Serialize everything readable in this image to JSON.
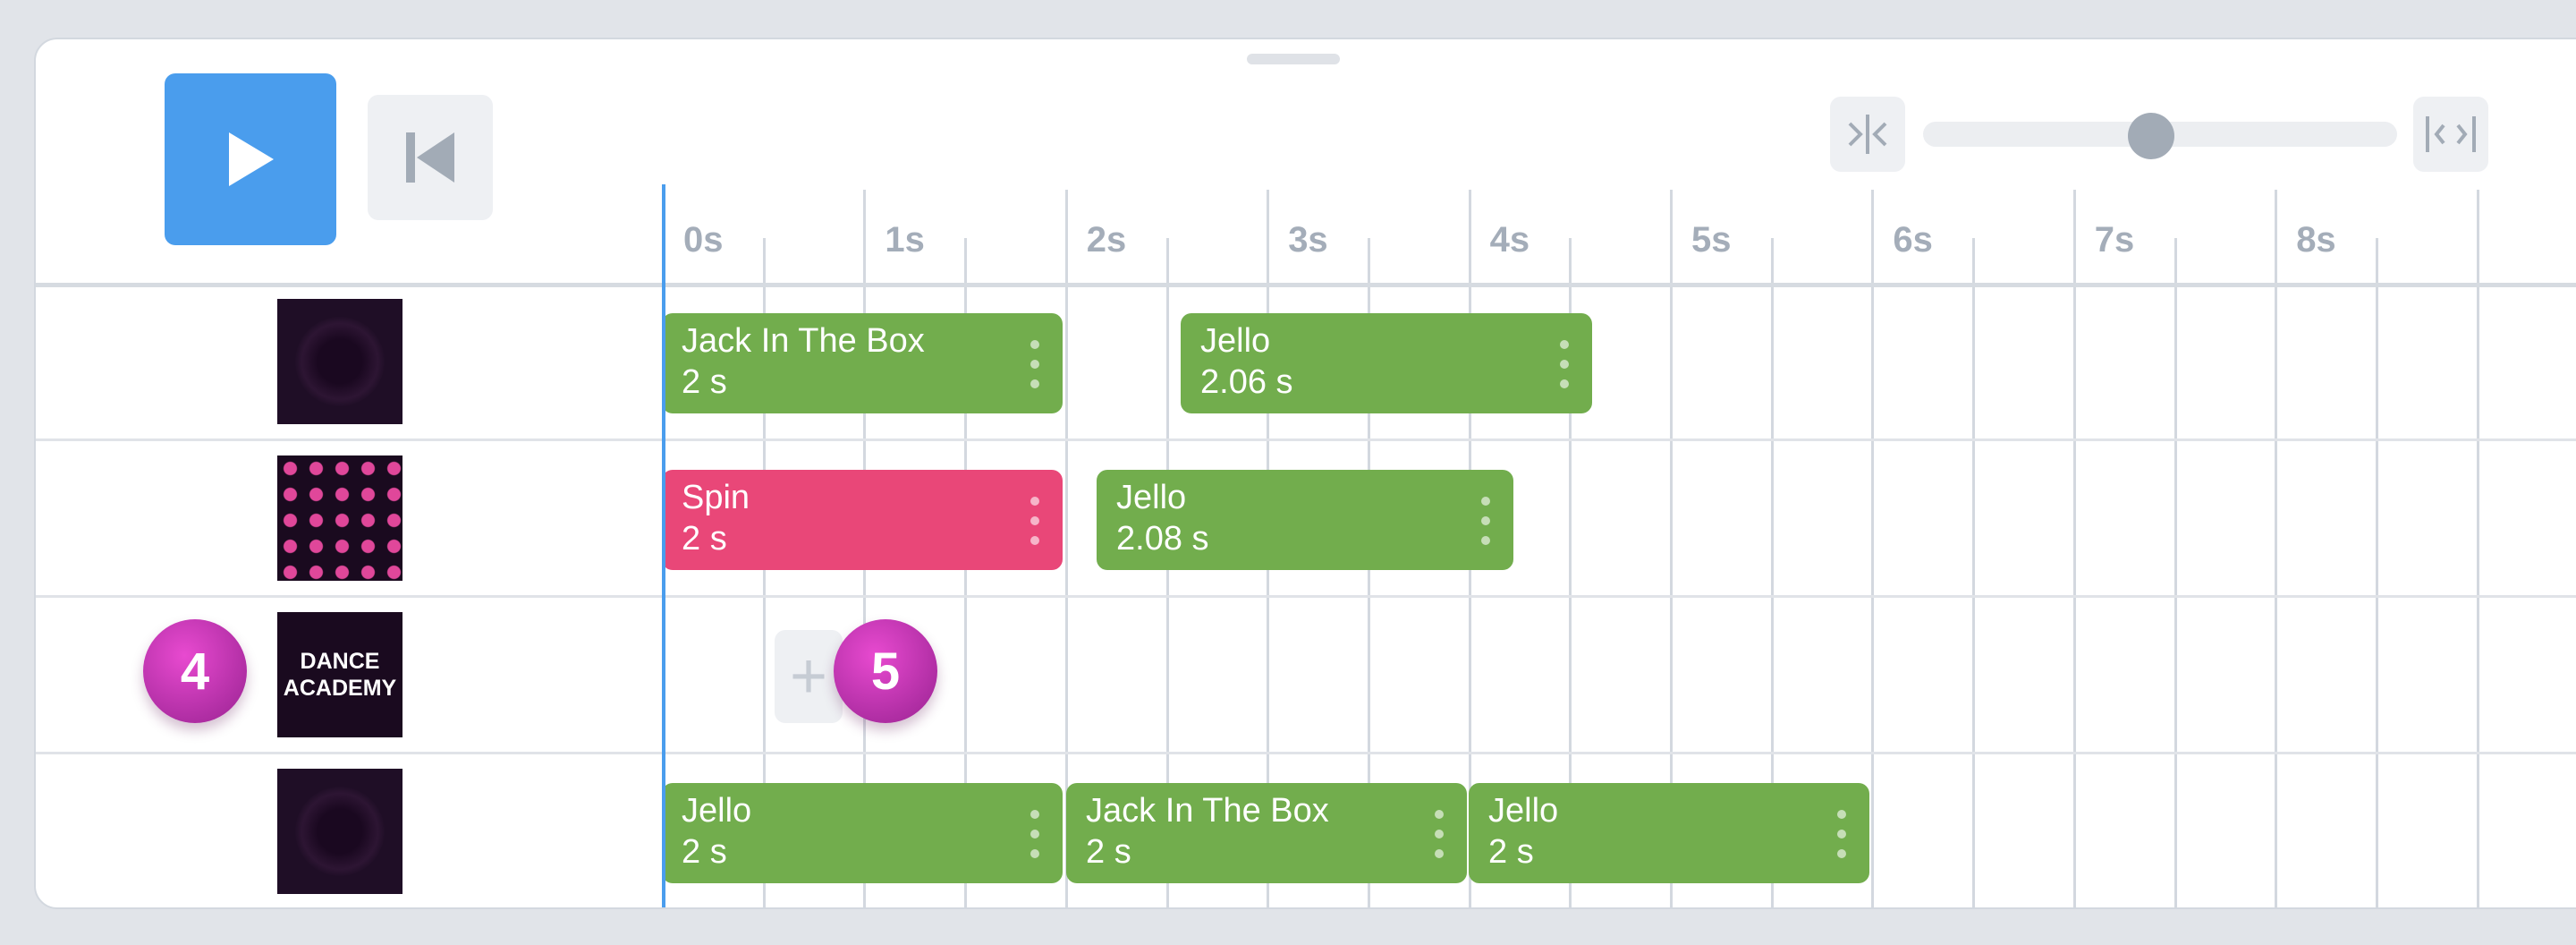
{
  "ruler": {
    "labels": [
      "0s",
      "1s",
      "2s",
      "3s",
      "4s",
      "5s",
      "6s",
      "7s",
      "8s"
    ]
  },
  "tracks": [
    {
      "avatar": "dark-ring",
      "clips": [
        {
          "name": "Jack In The Box",
          "duration": "2 s",
          "color": "#72ad4d"
        },
        {
          "name": "Jello",
          "duration": "2.06 s",
          "color": "#72ad4d"
        }
      ]
    },
    {
      "avatar": "pink-dots",
      "clips": [
        {
          "name": "Spin",
          "duration": "2 s",
          "color": "#e94778"
        },
        {
          "name": "Jello",
          "duration": "2.08 s",
          "color": "#72ad4d"
        }
      ]
    },
    {
      "avatar": "dance-academy",
      "avatar_text": {
        "line1": "DANCE",
        "line2": "ACADEMY"
      },
      "clips": []
    },
    {
      "avatar": "dark-ring",
      "clips": [
        {
          "name": "Jello",
          "duration": "2 s",
          "color": "#72ad4d"
        },
        {
          "name": "Jack In The Box",
          "duration": "2 s",
          "color": "#72ad4d"
        },
        {
          "name": "Jello",
          "duration": "2 s",
          "color": "#72ad4d"
        }
      ]
    }
  ],
  "badges": {
    "step4": "4",
    "step5": "5"
  },
  "add_clip": {
    "label": "+"
  },
  "zoom": {
    "level": 0.48
  },
  "controls": {
    "play_icon": "play-icon",
    "back_icon": "skip-to-start-icon",
    "zoom_in_icon": "collapse-horizontal-icon",
    "zoom_out_icon": "expand-horizontal-icon"
  },
  "colors": {
    "accent": "#4a9ded",
    "clip_green": "#72ad4d",
    "clip_pink": "#e94778",
    "badge": "#c13ab5"
  }
}
